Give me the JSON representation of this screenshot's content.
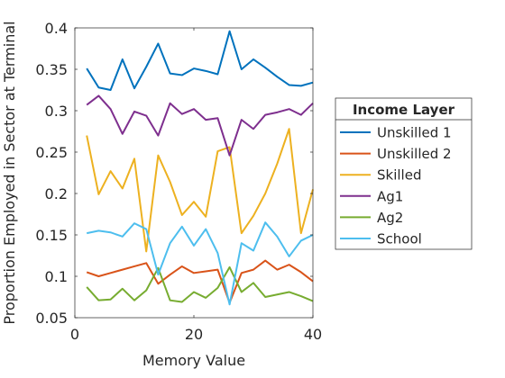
{
  "chart_data": {
    "type": "line",
    "title": "",
    "xlabel": "Memory Value",
    "ylabel": "Proportion Employed in Sector at Terminal",
    "xlim": [
      0,
      40
    ],
    "ylim": [
      0.05,
      0.4
    ],
    "xticks": [
      0,
      20,
      40
    ],
    "xtick_labels": [
      "0",
      "20",
      "40"
    ],
    "yticks": [
      0.05,
      0.1,
      0.15,
      0.2,
      0.25,
      0.3,
      0.35,
      0.4
    ],
    "ytick_labels": [
      "0.05",
      "0.1",
      "0.15",
      "0.2",
      "0.25",
      "0.3",
      "0.35",
      "0.4"
    ],
    "grid": false,
    "legend": {
      "title": "Income Layer",
      "placement": "outside-right"
    },
    "x": [
      2,
      4,
      6,
      8,
      10,
      12,
      14,
      16,
      18,
      20,
      22,
      24,
      26,
      28,
      30,
      32,
      34,
      36,
      38,
      40
    ],
    "series": [
      {
        "name": "Unskilled 1",
        "color": "#0072bd",
        "values": [
          0.351,
          0.328,
          0.325,
          0.362,
          0.327,
          0.353,
          0.381,
          0.345,
          0.343,
          0.351,
          0.348,
          0.344,
          0.396,
          0.35,
          0.362,
          0.352,
          0.341,
          0.331,
          0.33,
          0.334
        ]
      },
      {
        "name": "Unskilled 2",
        "color": "#d95319",
        "values": [
          0.105,
          0.1,
          0.104,
          0.108,
          0.112,
          0.116,
          0.091,
          0.102,
          0.112,
          0.104,
          0.106,
          0.108,
          0.068,
          0.104,
          0.108,
          0.119,
          0.108,
          0.114,
          0.105,
          0.094
        ]
      },
      {
        "name": "Skilled",
        "color": "#edb120",
        "values": [
          0.27,
          0.199,
          0.227,
          0.206,
          0.242,
          0.13,
          0.246,
          0.214,
          0.174,
          0.19,
          0.172,
          0.251,
          0.256,
          0.152,
          0.173,
          0.2,
          0.236,
          0.278,
          0.152,
          0.205
        ]
      },
      {
        "name": "Ag1",
        "color": "#7e2f8e",
        "values": [
          0.307,
          0.318,
          0.302,
          0.272,
          0.299,
          0.294,
          0.27,
          0.309,
          0.296,
          0.302,
          0.289,
          0.291,
          0.246,
          0.289,
          0.278,
          0.295,
          0.298,
          0.302,
          0.295,
          0.309
        ]
      },
      {
        "name": "Ag2",
        "color": "#77ac30",
        "values": [
          0.087,
          0.071,
          0.072,
          0.085,
          0.071,
          0.083,
          0.11,
          0.071,
          0.069,
          0.081,
          0.074,
          0.086,
          0.111,
          0.081,
          0.092,
          0.075,
          0.078,
          0.081,
          0.076,
          0.07
        ]
      },
      {
        "name": "School",
        "color": "#4dbeee",
        "values": [
          0.152,
          0.155,
          0.153,
          0.148,
          0.164,
          0.157,
          0.102,
          0.14,
          0.16,
          0.137,
          0.157,
          0.128,
          0.066,
          0.14,
          0.131,
          0.165,
          0.148,
          0.124,
          0.143,
          0.15
        ]
      }
    ]
  }
}
